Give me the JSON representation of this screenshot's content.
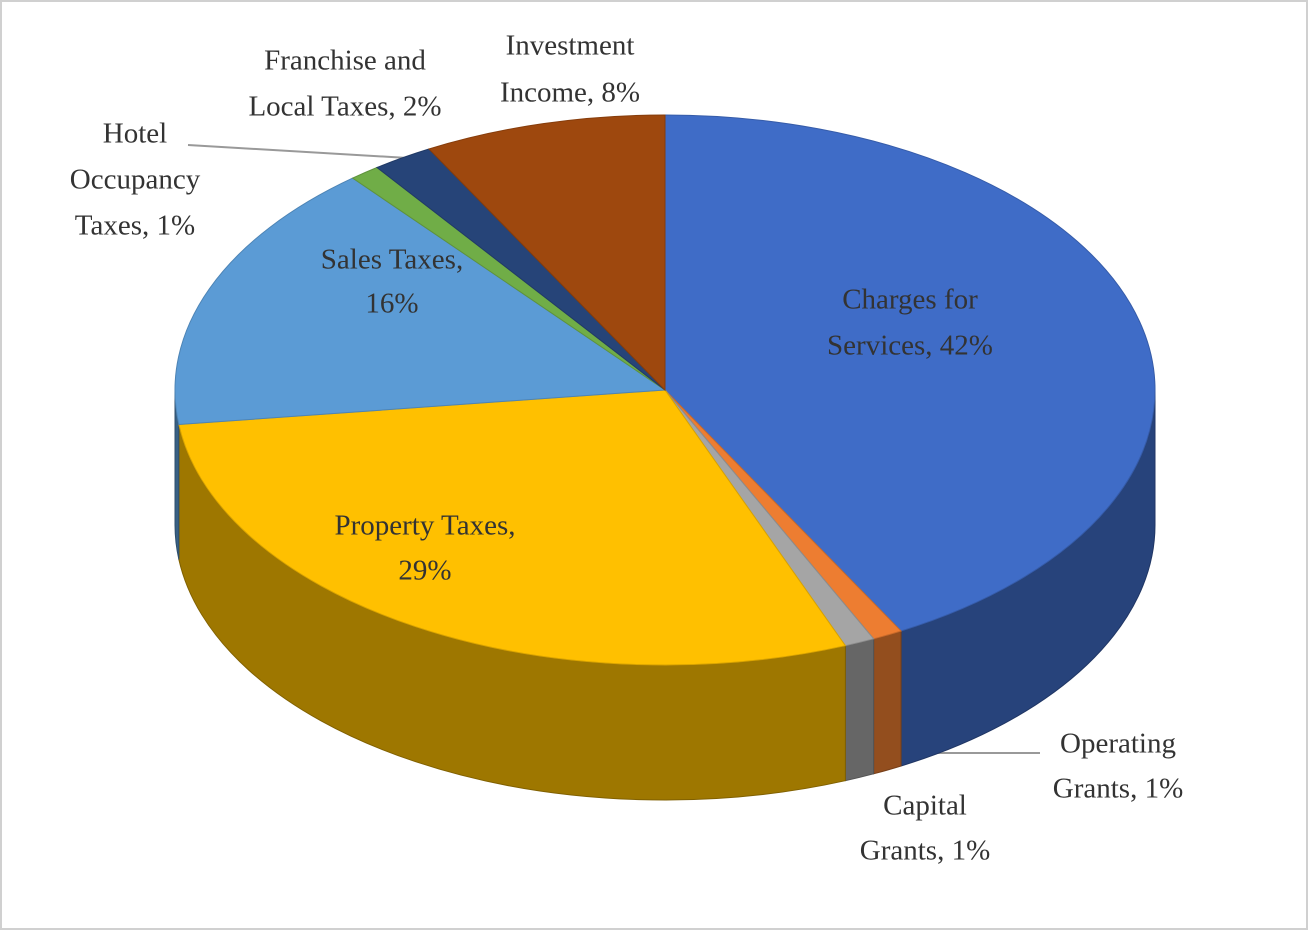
{
  "chart_data": {
    "type": "pie",
    "three_d": true,
    "labels": [
      [
        "Charges for",
        "Services, 42%"
      ],
      [
        "Operating",
        "Grants, 1%"
      ],
      [
        "Capital",
        "Grants, 1%"
      ],
      [
        "Property Taxes,",
        "29%"
      ],
      [
        "Sales Taxes,",
        "16%"
      ],
      [
        "Hotel",
        "Occupancy",
        "Taxes, 1%"
      ],
      [
        "Franchise and",
        "Local Taxes, 2%"
      ],
      [
        "Investment",
        "Income, 8%"
      ]
    ],
    "values": [
      42,
      1,
      1,
      29,
      16,
      1,
      2,
      8
    ],
    "colors": [
      "#3f6cc7",
      "#ed7d31",
      "#a5a5a5",
      "#ffc000",
      "#5b9bd5",
      "#70ad47",
      "#264478",
      "#9e480e"
    ]
  }
}
